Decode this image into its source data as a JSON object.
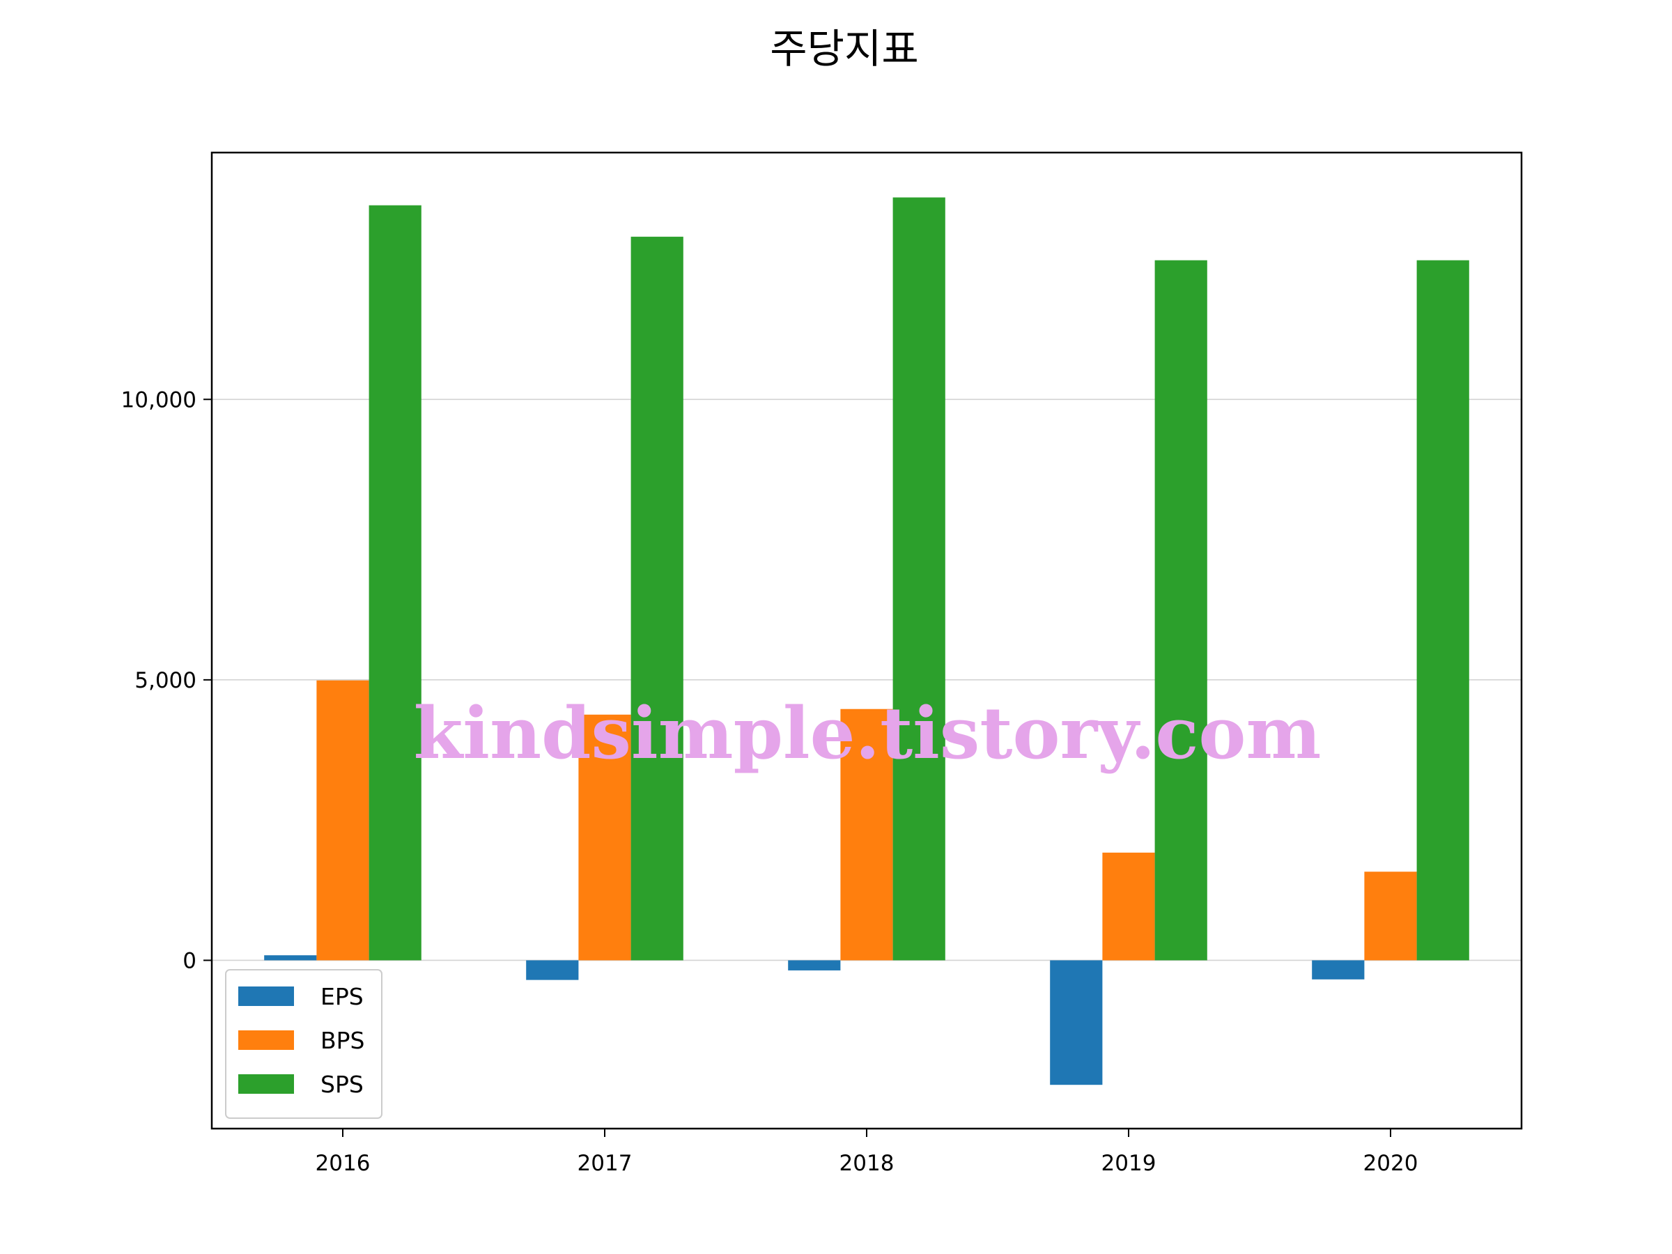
{
  "chart_data": {
    "type": "bar",
    "title": "주당지표",
    "xlabel": "",
    "ylabel": "",
    "categories": [
      "2016",
      "2017",
      "2018",
      "2019",
      "2020"
    ],
    "series": [
      {
        "name": "EPS",
        "color": "#1f77b4",
        "values": [
          90,
          -350,
          -180,
          -2220,
          -340
        ]
      },
      {
        "name": "BPS",
        "color": "#ff7f0e",
        "values": [
          4990,
          4380,
          4480,
          1920,
          1580
        ]
      },
      {
        "name": "SPS",
        "color": "#2ca02c",
        "values": [
          13460,
          12900,
          13600,
          12480,
          12480
        ]
      }
    ],
    "ylim": [
      -3000,
      14400
    ],
    "yticks": [
      0,
      5000,
      10000
    ],
    "ytick_labels": [
      "0",
      "5,000",
      "10,000"
    ],
    "grid": "horizontal",
    "legend_position": "lower-left"
  },
  "watermark": "kindsimple.tistory.com"
}
